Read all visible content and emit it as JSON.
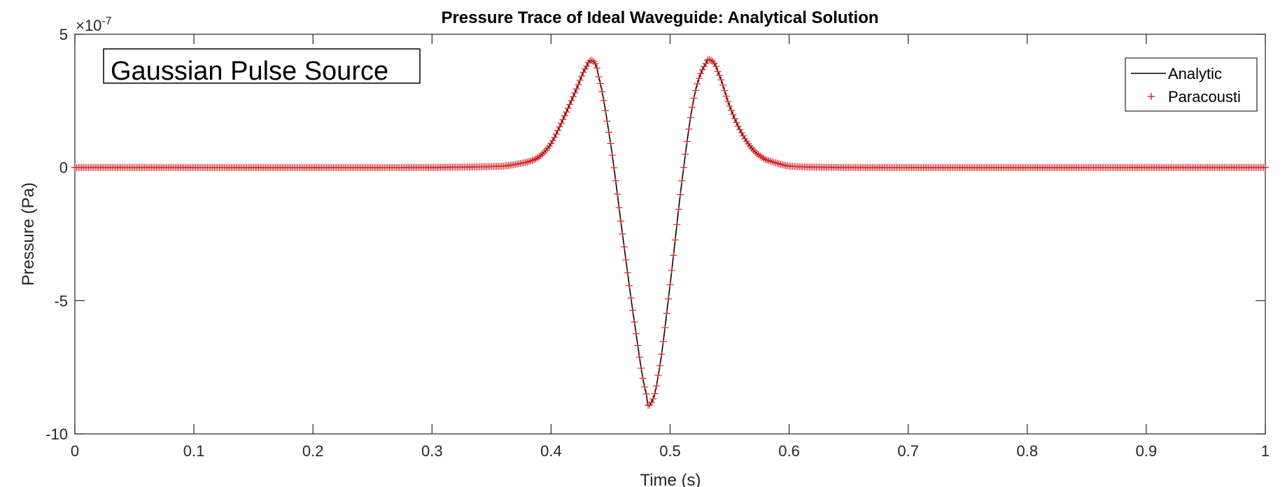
{
  "chart_data": {
    "type": "line",
    "title": "Pressure Trace of Ideal Waveguide: Analytical Solution",
    "xlabel": "Time (s)",
    "ylabel": "Pressure (Pa)",
    "xlim": [
      0,
      1
    ],
    "ylim": [
      -10,
      5
    ],
    "y_exponent_label": "×10",
    "y_exponent_power": "-7",
    "x_ticks": [
      0,
      0.1,
      0.2,
      0.3,
      0.4,
      0.5,
      0.6,
      0.7,
      0.8,
      0.9,
      1
    ],
    "x_tick_labels": [
      "0",
      "0.1",
      "0.2",
      "0.3",
      "0.4",
      "0.5",
      "0.6",
      "0.7",
      "0.8",
      "0.9",
      "1"
    ],
    "y_ticks": [
      5,
      0,
      -5,
      -10
    ],
    "y_tick_labels": [
      "5",
      "0",
      "-5",
      "-10"
    ],
    "grid": false,
    "legend_position": "top-right",
    "annotation": "Gaussian Pulse Source",
    "series": [
      {
        "name": "Analytic",
        "style": "line",
        "color": "#000000",
        "x": [
          0,
          0.3,
          0.36,
          0.38,
          0.39,
          0.4,
          0.41,
          0.42,
          0.43,
          0.435,
          0.44,
          0.45,
          0.46,
          0.47,
          0.48,
          0.483,
          0.49,
          0.5,
          0.51,
          0.52,
          0.53,
          0.535,
          0.54,
          0.55,
          0.56,
          0.57,
          0.58,
          0.6,
          0.65,
          1.0
        ],
        "y": [
          0,
          0,
          0.05,
          0.2,
          0.4,
          0.9,
          1.8,
          2.8,
          3.8,
          4.0,
          3.4,
          0.9,
          -2.5,
          -5.8,
          -8.5,
          -8.9,
          -7.8,
          -4.4,
          -0.5,
          2.6,
          3.9,
          4.0,
          3.6,
          2.3,
          1.3,
          0.65,
          0.3,
          0.05,
          0,
          0
        ]
      },
      {
        "name": "Paracousti",
        "style": "marker-plus",
        "color": "#d62728",
        "x": [
          0,
          0.3,
          0.36,
          0.38,
          0.39,
          0.4,
          0.41,
          0.42,
          0.43,
          0.435,
          0.44,
          0.45,
          0.46,
          0.47,
          0.48,
          0.483,
          0.49,
          0.5,
          0.51,
          0.52,
          0.53,
          0.535,
          0.54,
          0.55,
          0.56,
          0.57,
          0.58,
          0.6,
          0.65,
          1.0
        ],
        "y": [
          0,
          0,
          0.05,
          0.2,
          0.4,
          0.9,
          1.8,
          2.8,
          3.8,
          4.0,
          3.4,
          0.9,
          -2.5,
          -5.8,
          -8.5,
          -8.9,
          -7.8,
          -4.4,
          -0.5,
          2.6,
          3.9,
          4.0,
          3.6,
          2.3,
          1.3,
          0.65,
          0.3,
          0.05,
          0,
          0
        ]
      }
    ]
  }
}
